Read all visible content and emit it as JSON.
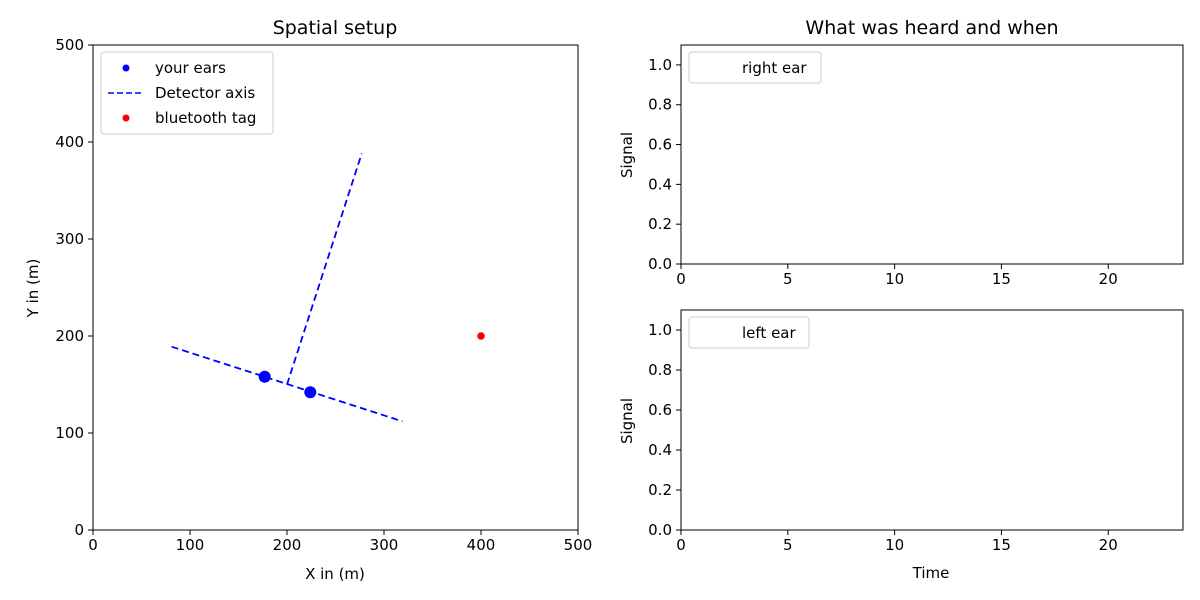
{
  "chart_data": [
    {
      "type": "scatter",
      "title": "Spatial setup",
      "xlabel": "X in (m)",
      "ylabel": "Y in (m)",
      "xlim": [
        0,
        500
      ],
      "ylim": [
        0,
        500
      ],
      "xticks": [
        0,
        100,
        200,
        300,
        400,
        500
      ],
      "yticks": [
        0,
        100,
        200,
        300,
        400,
        500
      ],
      "grid": false,
      "legend_position": "top-left",
      "legend": [
        {
          "label": "your ears",
          "marker": "dot",
          "color": "#0000ff"
        },
        {
          "label": "Detector axis",
          "marker": "dashed-line",
          "color": "#0000ff"
        },
        {
          "label": "bluetooth tag",
          "marker": "dot",
          "color": "#ff0000"
        }
      ],
      "series": [
        {
          "name": "your ears",
          "kind": "points",
          "color": "#0000ff",
          "points": [
            {
              "x": 177,
              "y": 158
            },
            {
              "x": 224,
              "y": 142
            }
          ]
        },
        {
          "name": "Detector axis",
          "kind": "dashed-lines",
          "color": "#0000ff",
          "segments": [
            [
              {
                "x": 81,
                "y": 189
              },
              {
                "x": 319,
                "y": 112
              }
            ],
            [
              {
                "x": 200,
                "y": 150
              },
              {
                "x": 277,
                "y": 388
              }
            ]
          ]
        },
        {
          "name": "bluetooth tag",
          "kind": "points",
          "color": "#ff0000",
          "points": [
            {
              "x": 400,
              "y": 200
            }
          ]
        }
      ]
    },
    {
      "type": "line",
      "title": "What was heard and when",
      "xlabel": "",
      "ylabel": "Signal",
      "xlim": [
        0,
        23.5
      ],
      "ylim": [
        0,
        1.1
      ],
      "xticks": [
        0,
        5,
        10,
        15,
        20
      ],
      "yticks": [
        0.0,
        0.2,
        0.4,
        0.6,
        0.8,
        1.0
      ],
      "grid": false,
      "legend_position": "top-left",
      "legend": [
        {
          "label": "right ear",
          "marker": "none",
          "color": "#ffffff"
        }
      ],
      "series": [
        {
          "name": "right ear",
          "values": []
        }
      ]
    },
    {
      "type": "line",
      "title": "",
      "xlabel": "Time",
      "ylabel": "Signal",
      "xlim": [
        0,
        23.5
      ],
      "ylim": [
        0,
        1.1
      ],
      "xticks": [
        0,
        5,
        10,
        15,
        20
      ],
      "yticks": [
        0.0,
        0.2,
        0.4,
        0.6,
        0.8,
        1.0
      ],
      "grid": false,
      "legend_position": "top-left",
      "legend": [
        {
          "label": "left ear",
          "marker": "none",
          "color": "#ffffff"
        }
      ],
      "series": [
        {
          "name": "left ear",
          "values": []
        }
      ]
    }
  ]
}
